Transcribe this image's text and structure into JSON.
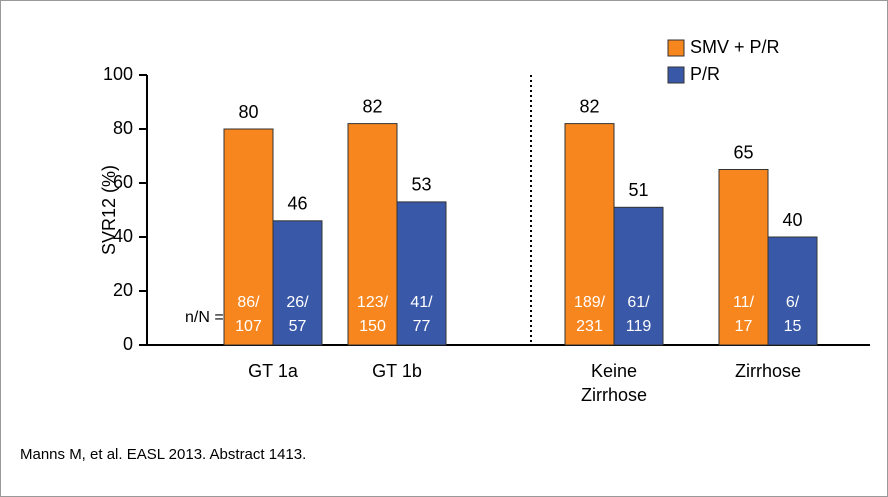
{
  "chart_data": {
    "type": "bar",
    "y_label": "SVR12 (%)",
    "categories": [
      "GT 1a",
      "GT 1b",
      "Keine Zirrhose",
      "Zirrhose"
    ],
    "series": [
      {
        "name": "SMV + P/R",
        "color": "#f7861e",
        "values": [
          80,
          82,
          82,
          65
        ],
        "counts": [
          [
            "86/",
            "107"
          ],
          [
            "123/",
            "150"
          ],
          [
            "189/",
            "231"
          ],
          [
            "11/",
            "17"
          ]
        ]
      },
      {
        "name": "P/R",
        "color": "#3a58a8",
        "values": [
          46,
          53,
          51,
          40
        ],
        "counts": [
          [
            "26/",
            "57"
          ],
          [
            "41/",
            "77"
          ],
          [
            "61/",
            "119"
          ],
          [
            "6/",
            "15"
          ]
        ]
      }
    ],
    "counts_label": "n/N =",
    "ylim": [
      0,
      100
    ],
    "yticks": [
      0,
      20,
      40,
      60,
      80,
      100
    ],
    "legend": "top-right",
    "source": "Manns M, et al. EASL 2013. Abstract 1413."
  }
}
